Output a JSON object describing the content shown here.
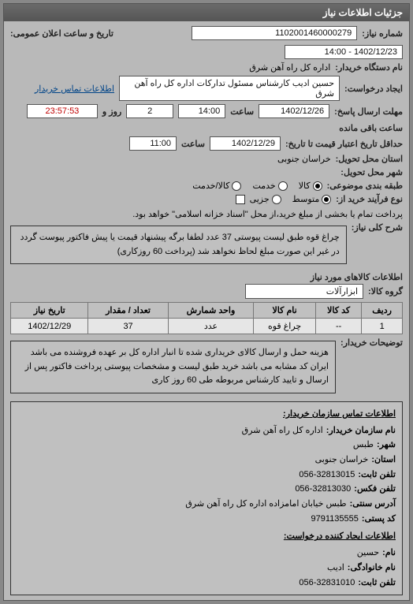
{
  "header": "جزئیات اطلاعات نیاز",
  "labels": {
    "request_no": "شماره نیاز:",
    "org_name": "نام دستگاه خریدار:",
    "request_create": "ایجاد درخواست:",
    "contact_link": "اطلاعات تماس خریدار",
    "send_deadline": "مهلت ارسال پاسخ:",
    "price_validity": "حداقل تاریخ اعتبار قیمت تا تاریخ:",
    "province": "استان محل تحویل:",
    "city": "شهر محل تحویل:",
    "category": "طبقه بندی موضوعی:",
    "process_type": "نوع فرآیند خرید از:",
    "main_desc": "شرح کلی نیاز:",
    "goods_group": "گروه کالا:",
    "buyer_notes": "توضیحات خریدار:",
    "announce_datetime": "تاریخ و ساعت اعلان عمومی:",
    "hour": "ساعت",
    "and": "و",
    "day": "روز",
    "remaining": "ساعت باقی مانده"
  },
  "values": {
    "request_no": "1102001460000279",
    "org_name": "اداره کل راه آهن شرق",
    "request_create": "حسین ادیب کارشناس مسئول تدارکات اداره کل راه آهن شرق",
    "announce_datetime": "1402/12/23 - 14:00",
    "send_date": "1402/12/26",
    "send_time": "14:00",
    "remaining_days": "2",
    "remaining_time": "23:57:53",
    "price_date": "1402/12/29",
    "price_time": "11:00",
    "province": "خراسان جنوبی",
    "goods_group": "ابزارآلات"
  },
  "category": {
    "options": [
      {
        "label": "کالا",
        "checked": true
      },
      {
        "label": "خدمت",
        "checked": false
      },
      {
        "label": "کالا/خدمت",
        "checked": false
      }
    ]
  },
  "process": {
    "options": [
      {
        "label": "متوسط",
        "checked": true
      },
      {
        "label": "جزیی",
        "checked": false
      }
    ],
    "checkbox_label": "پرداخت تمام یا بخشی از مبلغ خرید،از محل \"اسناد خزانه اسلامی\" خواهد بود.",
    "checkbox_checked": false
  },
  "main_desc": "چراغ قوه طبق لیست پیوستی 37 عدد لطفا برگه پیشنهاد قیمت یا پیش فاکتور پیوست گردد در غیر این صورت مبلغ لحاظ نخواهد شد (پرداخت 60 روزکاری)",
  "table": {
    "title": "اطلاعات کالاهای مورد نیاز",
    "columns": [
      "ردیف",
      "کد کالا",
      "نام کالا",
      "واحد شمارش",
      "تعداد / مقدار",
      "تاریخ نیاز"
    ],
    "rows": [
      [
        "1",
        "--",
        "چراغ قوه",
        "عدد",
        "37",
        "1402/12/29"
      ]
    ]
  },
  "buyer_notes": "هزینه حمل و ارسال کالای خریداری شده تا انبار اداره کل بر عهده فروشنده می باشد ایران کد مشابه می باشد خرید طبق لیست و مشخصات پیوستی پرداخت فاکتور پس از ارسال و تایید کارشناس مربوطه طی 60 روز کاری",
  "contacts": {
    "title1": "اطلاعات تماس سازمان خریدار:",
    "org_name_label": "نام سازمان خریدار:",
    "org_name": "اداره کل راه آهن شرق",
    "city_label": "شهر:",
    "city": "طبس",
    "province_label": "استان:",
    "province": "خراسان جنوبی",
    "phone_label": "تلفن ثابت:",
    "phone": "056-32813015",
    "fax_label": "تلفن فکس:",
    "fax": "056-32813030",
    "address_label": "آدرس سنتی:",
    "address": "طبس خیابان امامزاده اداره کل راه آهن شرق",
    "postal_label": "کد پستی:",
    "postal": "9791135555",
    "title2": "اطلاعات ایجاد کننده درخواست:",
    "name_label": "نام:",
    "name": "حسین",
    "lastname_label": "نام خانوادگی:",
    "lastname": "ادیب",
    "phone2_label": "تلفن ثابت:",
    "phone2": "056-32831010"
  }
}
